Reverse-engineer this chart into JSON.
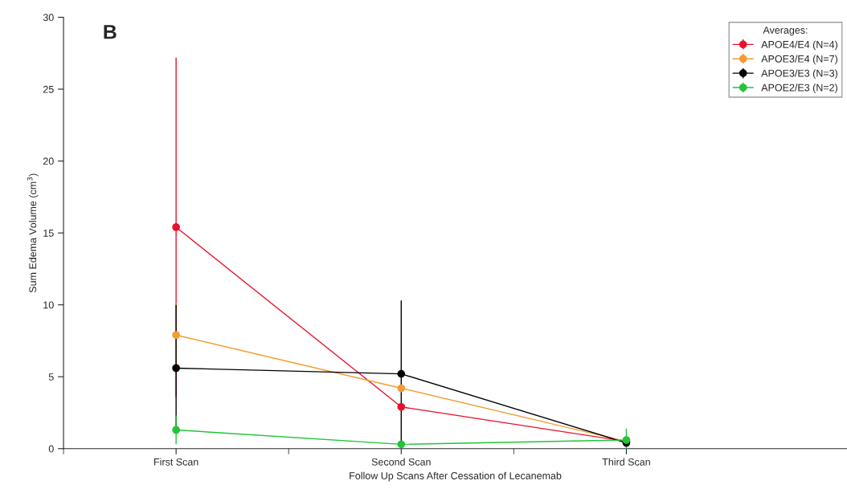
{
  "chart_data": {
    "type": "line",
    "categories": [
      "First Scan",
      "Second Scan",
      "Third Scan"
    ],
    "series": [
      {
        "name": "APOE4/E4 (N=4)",
        "color": "#e8112d",
        "values": [
          15.4,
          2.9,
          0.5
        ],
        "errors": [
          11.8,
          null,
          null
        ]
      },
      {
        "name": "APOE3/E4 (N=7)",
        "color": "#f39c33",
        "values": [
          7.9,
          4.2,
          0.5
        ],
        "errors": [
          2.2,
          null,
          null
        ]
      },
      {
        "name": "APOE3/E3 (N=3)",
        "color": "#000000",
        "values": [
          5.6,
          5.2,
          0.4
        ],
        "errors": [
          4.4,
          5.1,
          null
        ]
      },
      {
        "name": "APOE2/E3 (N=2)",
        "color": "#22c43a",
        "values": [
          1.3,
          0.3,
          0.6
        ],
        "errors": [
          1.0,
          null,
          0.8
        ]
      }
    ],
    "xlabel": "Follow Up Scans After Cessation of Lecanemab",
    "ylabel": "Sum Edema Volume (cm$^{3}$)",
    "legend_title": "Averages:",
    "annotations": [
      "B"
    ],
    "ylim": [
      0,
      30
    ],
    "yticks": [
      0,
      5,
      10,
      15,
      20,
      25,
      30
    ],
    "marker": "circle",
    "line_style": "solid",
    "grid": false,
    "legend": "top right"
  }
}
